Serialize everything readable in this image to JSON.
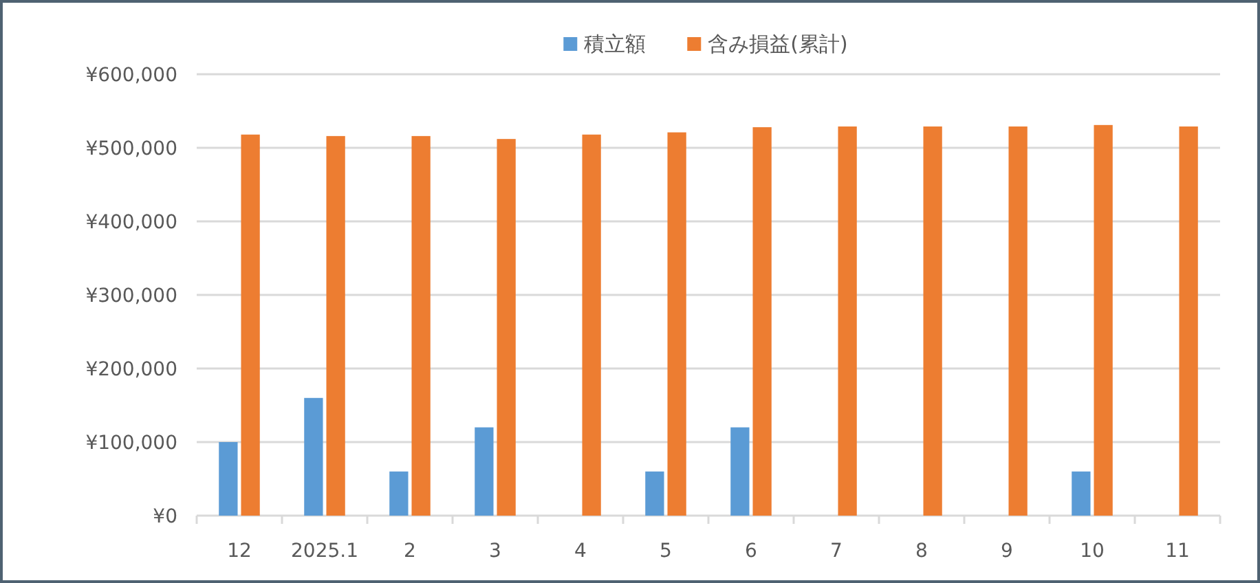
{
  "chart_data": {
    "type": "bar",
    "categories": [
      "12",
      "2025.1",
      "2",
      "3",
      "4",
      "5",
      "6",
      "7",
      "8",
      "9",
      "10",
      "11"
    ],
    "series": [
      {
        "name": "積立額",
        "color": "#5b9bd5",
        "values": [
          100000,
          160000,
          60000,
          120000,
          0,
          60000,
          120000,
          0,
          0,
          0,
          60000,
          0
        ]
      },
      {
        "name": "含み損益(累計)",
        "color": "#ed7d31",
        "values": [
          518000,
          516000,
          516000,
          512000,
          518000,
          521000,
          528000,
          529000,
          529000,
          529000,
          531000,
          529000
        ]
      }
    ],
    "ylim": [
      0,
      600000
    ],
    "yticks": [
      {
        "value": 0,
        "label": "¥0"
      },
      {
        "value": 100000,
        "label": "¥100,000"
      },
      {
        "value": 200000,
        "label": "¥200,000"
      },
      {
        "value": 300000,
        "label": "¥300,000"
      },
      {
        "value": 400000,
        "label": "¥400,000"
      },
      {
        "value": 500000,
        "label": "¥500,000"
      },
      {
        "value": 600000,
        "label": "¥600,000"
      }
    ],
    "grid": "y",
    "legend": "top"
  }
}
